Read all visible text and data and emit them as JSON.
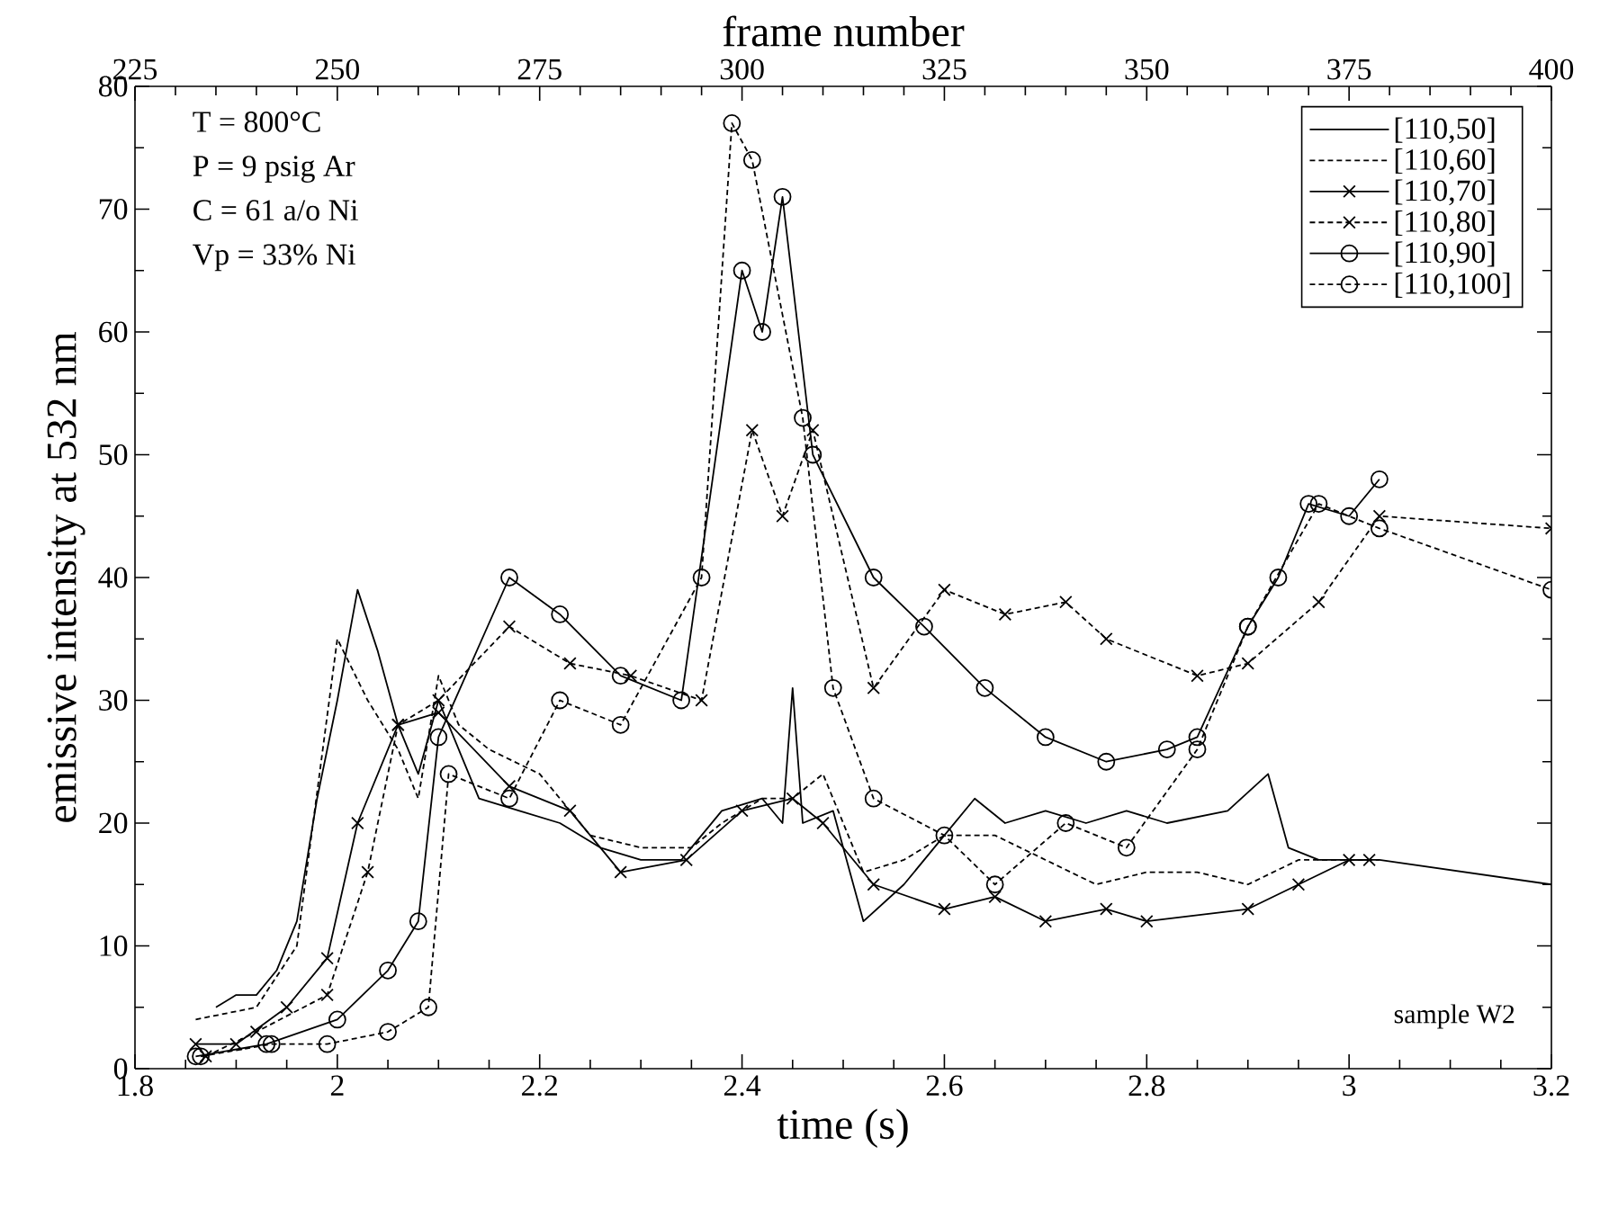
{
  "chart_data": {
    "type": "line",
    "xlabel": "time (s)",
    "ylabel": "emissive intensity at 532 nm",
    "x2label": "frame number",
    "xlim": [
      1.8,
      3.2
    ],
    "xticks": [
      1.8,
      2,
      2.2,
      2.4,
      2.6,
      2.8,
      3,
      3.2
    ],
    "x2lim": [
      225,
      400
    ],
    "x2ticks": [
      225,
      250,
      275,
      300,
      325,
      350,
      375,
      400
    ],
    "ylim": [
      0,
      80
    ],
    "yticks": [
      0,
      10,
      20,
      30,
      40,
      50,
      60,
      70,
      80
    ],
    "legend": "top right",
    "grid": false,
    "annotations": [
      "T = 800°C",
      "P = 9 psig Ar",
      "C = 61 a/o Ni",
      "Vp = 33% Ni",
      "sample W2"
    ],
    "series": [
      {
        "name": "[110,50]",
        "color": "#000000",
        "line_style": "solid",
        "marker": "none",
        "x": [
          1.88,
          1.9,
          1.92,
          1.94,
          1.96,
          1.98,
          2.0,
          2.02,
          2.04,
          2.06,
          2.08,
          2.1,
          2.12,
          2.14,
          2.18,
          2.22,
          2.26,
          2.3,
          2.34,
          2.38,
          2.42,
          2.44,
          2.45,
          2.46,
          2.49,
          2.52,
          2.56,
          2.6,
          2.63,
          2.66,
          2.7,
          2.74,
          2.78,
          2.82,
          2.88,
          2.92,
          2.94,
          2.97,
          3.0,
          3.03,
          3.2
        ],
        "values": [
          5,
          6,
          6,
          8,
          12,
          22,
          30,
          39,
          34,
          28,
          24,
          30,
          26,
          22,
          21,
          20,
          18,
          17,
          17,
          21,
          22,
          20,
          31,
          20,
          21,
          12,
          15,
          19,
          22,
          20,
          21,
          20,
          21,
          20,
          21,
          24,
          18,
          17,
          17,
          17,
          15
        ]
      },
      {
        "name": "[110,60]",
        "color": "#000000",
        "line_style": "dashed",
        "marker": "none",
        "x": [
          1.86,
          1.92,
          1.96,
          2.0,
          2.03,
          2.06,
          2.08,
          2.1,
          2.12,
          2.15,
          2.2,
          2.25,
          2.3,
          2.35,
          2.38,
          2.42,
          2.45,
          2.48,
          2.52,
          2.56,
          2.6,
          2.65,
          2.7,
          2.75,
          2.8,
          2.85,
          2.9,
          2.95,
          3.0,
          3.03
        ],
        "values": [
          4,
          5,
          10,
          35,
          30,
          26,
          22,
          32,
          28,
          26,
          24,
          19,
          18,
          18,
          20,
          22,
          22,
          24,
          16,
          17,
          19,
          19,
          17,
          15,
          16,
          16,
          15,
          17,
          17,
          17
        ]
      },
      {
        "name": "[110,70]",
        "color": "#000000",
        "line_style": "solid",
        "marker": "cross",
        "x": [
          1.86,
          1.9,
          1.95,
          1.99,
          2.02,
          2.06,
          2.1,
          2.17,
          2.23,
          2.28,
          2.345,
          2.4,
          2.45,
          2.48,
          2.53,
          2.6,
          2.65,
          2.7,
          2.76,
          2.8,
          2.9,
          2.95,
          3.0,
          3.02
        ],
        "values": [
          2,
          2,
          5,
          9,
          20,
          28,
          29,
          23,
          21,
          16,
          17,
          21,
          22,
          20,
          15,
          13,
          14,
          12,
          13,
          12,
          13,
          15,
          17,
          17
        ]
      },
      {
        "name": "[110,80]",
        "color": "#000000",
        "line_style": "dashed",
        "marker": "cross",
        "x": [
          1.87,
          1.92,
          1.99,
          2.03,
          2.06,
          2.1,
          2.17,
          2.23,
          2.29,
          2.36,
          2.41,
          2.44,
          2.47,
          2.53,
          2.6,
          2.66,
          2.72,
          2.76,
          2.85,
          2.9,
          2.97,
          3.03,
          3.2
        ],
        "values": [
          1,
          3,
          6,
          16,
          28,
          30,
          36,
          33,
          32,
          30,
          52,
          45,
          52,
          31,
          39,
          37,
          38,
          35,
          32,
          33,
          38,
          45,
          44
        ]
      },
      {
        "name": "[110,90]",
        "color": "#000000",
        "line_style": "solid",
        "marker": "circle",
        "x": [
          1.86,
          1.93,
          2.0,
          2.05,
          2.08,
          2.1,
          2.17,
          2.22,
          2.28,
          2.34,
          2.4,
          2.42,
          2.44,
          2.47,
          2.53,
          2.58,
          2.64,
          2.7,
          2.76,
          2.82,
          2.85,
          2.9,
          2.93,
          2.96,
          3.0,
          3.03
        ],
        "values": [
          1,
          2,
          4,
          8,
          12,
          27,
          40,
          37,
          32,
          30,
          65,
          60,
          71,
          50,
          40,
          36,
          31,
          27,
          25,
          26,
          27,
          36,
          40,
          46,
          45,
          48
        ]
      },
      {
        "name": "[110,100]",
        "color": "#000000",
        "line_style": "dashed",
        "marker": "circle",
        "x": [
          1.865,
          1.935,
          1.99,
          2.05,
          2.09,
          2.11,
          2.17,
          2.22,
          2.28,
          2.36,
          2.39,
          2.41,
          2.46,
          2.49,
          2.53,
          2.6,
          2.65,
          2.72,
          2.78,
          2.85,
          2.9,
          2.97,
          3.03,
          3.2
        ],
        "values": [
          1,
          2,
          2,
          3,
          5,
          24,
          22,
          30,
          28,
          40,
          77,
          74,
          53,
          31,
          22,
          19,
          15,
          20,
          18,
          26,
          36,
          46,
          44,
          39
        ]
      }
    ]
  }
}
